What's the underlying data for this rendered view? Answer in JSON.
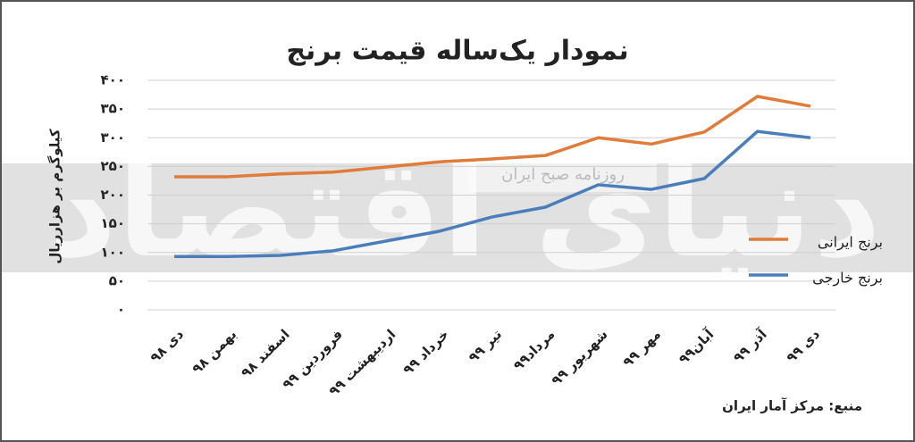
{
  "chart_data": {
    "type": "line",
    "title": "نمودار یک‌ساله قیمت برنج",
    "y_label": "کیلوگرم بر هزارریال",
    "source": "منبع: مرکز آمار ایران",
    "watermarks": [
      "دنیای اقتصاد",
      "روزنامه صبح ایران"
    ],
    "categories": [
      "دی ۹۸",
      "بهمن ۹۸",
      "اسفند ۹۸",
      "فروردین ۹۹",
      "اردیبهشت ۹۹",
      "خرداد ۹۹",
      "تیر ۹۹",
      "مرداد۹۹",
      "شهریور ۹۹",
      "مهر ۹۹",
      "آبان۹۹",
      "آذر ۹۹",
      "دی ۹۹"
    ],
    "series": [
      {
        "name": "برنج ایرانی",
        "color": "#e07b39",
        "values": [
          232,
          232,
          237,
          240,
          249,
          258,
          263,
          269,
          300,
          289,
          310,
          372,
          355
        ]
      },
      {
        "name": "برنج خارجی",
        "color": "#4a7ebb",
        "values": [
          93,
          93,
          95,
          103,
          120,
          137,
          162,
          179,
          218,
          210,
          229,
          311,
          300
        ]
      }
    ],
    "ylim": [
      0,
      400
    ],
    "yticks": [
      {
        "value": 0,
        "label": "۰"
      },
      {
        "value": 50,
        "label": "۵۰"
      },
      {
        "value": 100,
        "label": "۱۰۰"
      },
      {
        "value": 150,
        "label": "۱۵۰"
      },
      {
        "value": 200,
        "label": "۲۰۰"
      },
      {
        "value": 250,
        "label": "۲۵۰"
      },
      {
        "value": 300,
        "label": "۳۰۰"
      },
      {
        "value": 350,
        "label": "۳۵۰"
      },
      {
        "value": 400,
        "label": "۴۰۰"
      }
    ],
    "grid": true
  }
}
